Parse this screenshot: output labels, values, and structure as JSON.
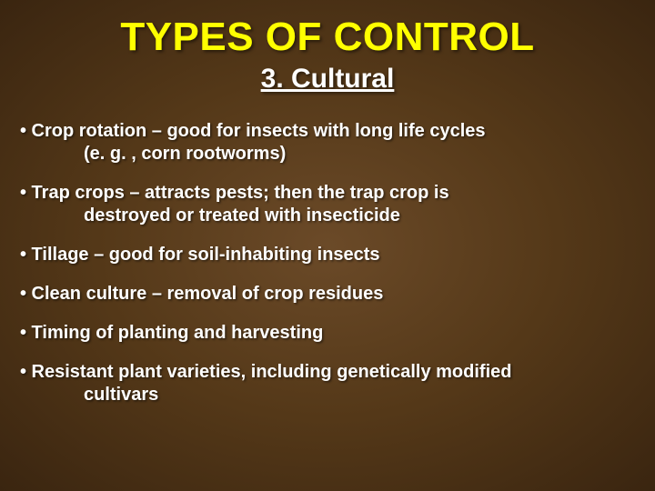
{
  "background_gradient": {
    "inner": "#6b4a28",
    "mid": "#543818",
    "outer": "#3a2510"
  },
  "title": {
    "text": "TYPES OF CONTROL",
    "color": "#ffff00",
    "fontsize": 44
  },
  "subtitle": {
    "text": "3. Cultural",
    "color": "#ffffff",
    "fontsize": 30,
    "underline": true
  },
  "bullets": [
    {
      "line1": "• Crop rotation – good for insects with long life cycles",
      "line2": "(e. g. , corn rootworms)"
    },
    {
      "line1": "• Trap crops – attracts pests; then the trap crop is",
      "line2": "destroyed or treated with insecticide"
    },
    {
      "line1": "• Tillage – good for soil-inhabiting insects",
      "line2": ""
    },
    {
      "line1": "• Clean culture – removal of crop residues",
      "line2": ""
    },
    {
      "line1": "• Timing of planting and harvesting",
      "line2": ""
    },
    {
      "line1": "• Resistant plant varieties, including genetically modified",
      "line2": "cultivars"
    }
  ],
  "bullet_style": {
    "color": "#ffffff",
    "fontsize": 20,
    "shadow": "rgba(0,0,0,0.5)"
  }
}
